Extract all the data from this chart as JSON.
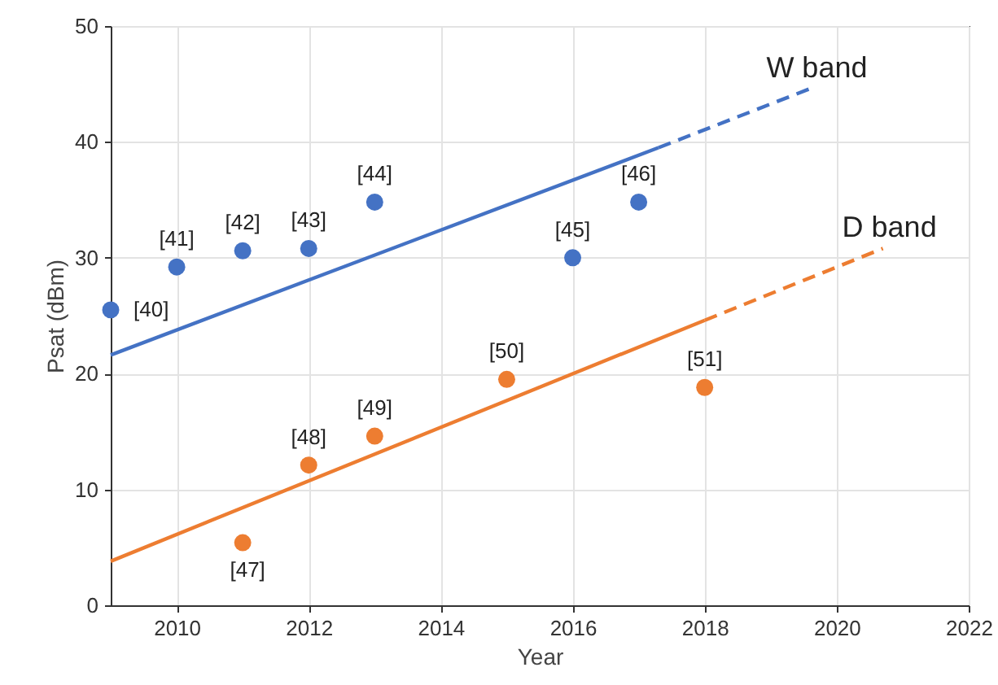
{
  "chart_data": {
    "type": "scatter",
    "xlabel": "Year",
    "ylabel": "Psat (dBm)",
    "xlim": [
      2009,
      2022
    ],
    "xticks": [
      {
        "value": 2010,
        "label": "2010"
      },
      {
        "value": 2012,
        "label": "2012"
      },
      {
        "value": 2014,
        "label": "2014"
      },
      {
        "value": 2016,
        "label": "2016"
      },
      {
        "value": 2018,
        "label": "2018"
      },
      {
        "value": 2020,
        "label": "2020"
      },
      {
        "value": 2022,
        "label": "2022"
      }
    ],
    "ylim": [
      0,
      50
    ],
    "yticks": [
      0,
      10,
      20,
      30,
      40,
      50
    ],
    "grid": true,
    "marker": "circle",
    "series": [
      {
        "color": "#4472c4",
        "x": [
          2009,
          2010,
          2011,
          2012,
          2013,
          2016,
          2017
        ],
        "values": [
          25.5,
          29.2,
          30.6,
          30.8,
          34.8,
          30,
          34.8
        ]
      },
      {
        "color": "#ed7d31",
        "x": [
          2011,
          2012,
          2013,
          2015,
          2018
        ],
        "values": [
          5.4,
          12.1,
          14.6,
          19.5,
          18.8
        ]
      },
      {
        "type": "line",
        "color": "#4472c4",
        "line_style": "solid",
        "marker": "none",
        "x": [
          2009,
          2017.3
        ],
        "values": [
          21.6,
          39.5
        ]
      },
      {
        "type": "line",
        "name": "W band",
        "color": "#4472c4",
        "line_style": "dashed",
        "marker": "none",
        "x": [
          2017.3,
          2019.6
        ],
        "values": [
          39.5,
          44.6
        ]
      },
      {
        "type": "line",
        "color": "#ed7d31",
        "line_style": "solid",
        "marker": "none",
        "x": [
          2009,
          2018
        ],
        "values": [
          3.8,
          24.6
        ]
      },
      {
        "type": "line",
        "name": "D band",
        "color": "#ed7d31",
        "line_style": "dashed",
        "marker": "none",
        "x": [
          2018,
          2020.7
        ],
        "values": [
          24.6,
          30.8
        ]
      }
    ],
    "annotations": [
      {
        "text": "[40]",
        "x": 2009,
        "y": 25.5
      },
      {
        "text": "[41]",
        "x": 2010,
        "y": 29.2
      },
      {
        "text": "[42]",
        "x": 2011,
        "y": 30.6
      },
      {
        "text": "[43]",
        "x": 2012,
        "y": 30.8
      },
      {
        "text": "[44]",
        "x": 2013,
        "y": 34.8
      },
      {
        "text": "[45]",
        "x": 2016,
        "y": 30
      },
      {
        "text": "[46]",
        "x": 2017,
        "y": 34.8
      },
      {
        "text": "[47]",
        "x": 2011,
        "y": 5.4
      },
      {
        "text": "[48]",
        "x": 2012,
        "y": 12.1
      },
      {
        "text": "[49]",
        "x": 2013,
        "y": 14.6
      },
      {
        "text": "[50]",
        "x": 2015,
        "y": 19.5
      },
      {
        "text": "[51]",
        "x": 2018,
        "y": 18.8
      }
    ]
  }
}
